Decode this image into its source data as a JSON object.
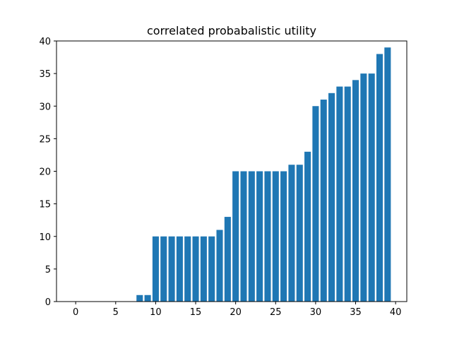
{
  "chart_data": {
    "type": "bar",
    "title": "correlated probabalistic utility",
    "xlabel": "",
    "ylabel": "",
    "x": [
      0,
      1,
      2,
      3,
      4,
      5,
      6,
      7,
      8,
      9,
      10,
      11,
      12,
      13,
      14,
      15,
      16,
      17,
      18,
      19,
      20,
      21,
      22,
      23,
      24,
      25,
      26,
      27,
      28,
      29,
      30,
      31,
      32,
      33,
      34,
      35,
      36,
      37,
      38,
      39
    ],
    "values": [
      0,
      0,
      0,
      0,
      0,
      0,
      0,
      0,
      1,
      1,
      10,
      10,
      10,
      10,
      10,
      10,
      10,
      10,
      11,
      13,
      20,
      20,
      20,
      20,
      20,
      20,
      20,
      21,
      21,
      23,
      30,
      31,
      32,
      33,
      33,
      34,
      35,
      35,
      38,
      39
    ],
    "xlim": [
      -2.4,
      41.4
    ],
    "ylim": [
      0,
      40
    ],
    "xticks": [
      0,
      5,
      10,
      15,
      20,
      25,
      30,
      35,
      40
    ],
    "yticks": [
      0,
      5,
      10,
      15,
      20,
      25,
      30,
      35,
      40
    ],
    "bar_color": "#1f77b4",
    "grid": false
  }
}
